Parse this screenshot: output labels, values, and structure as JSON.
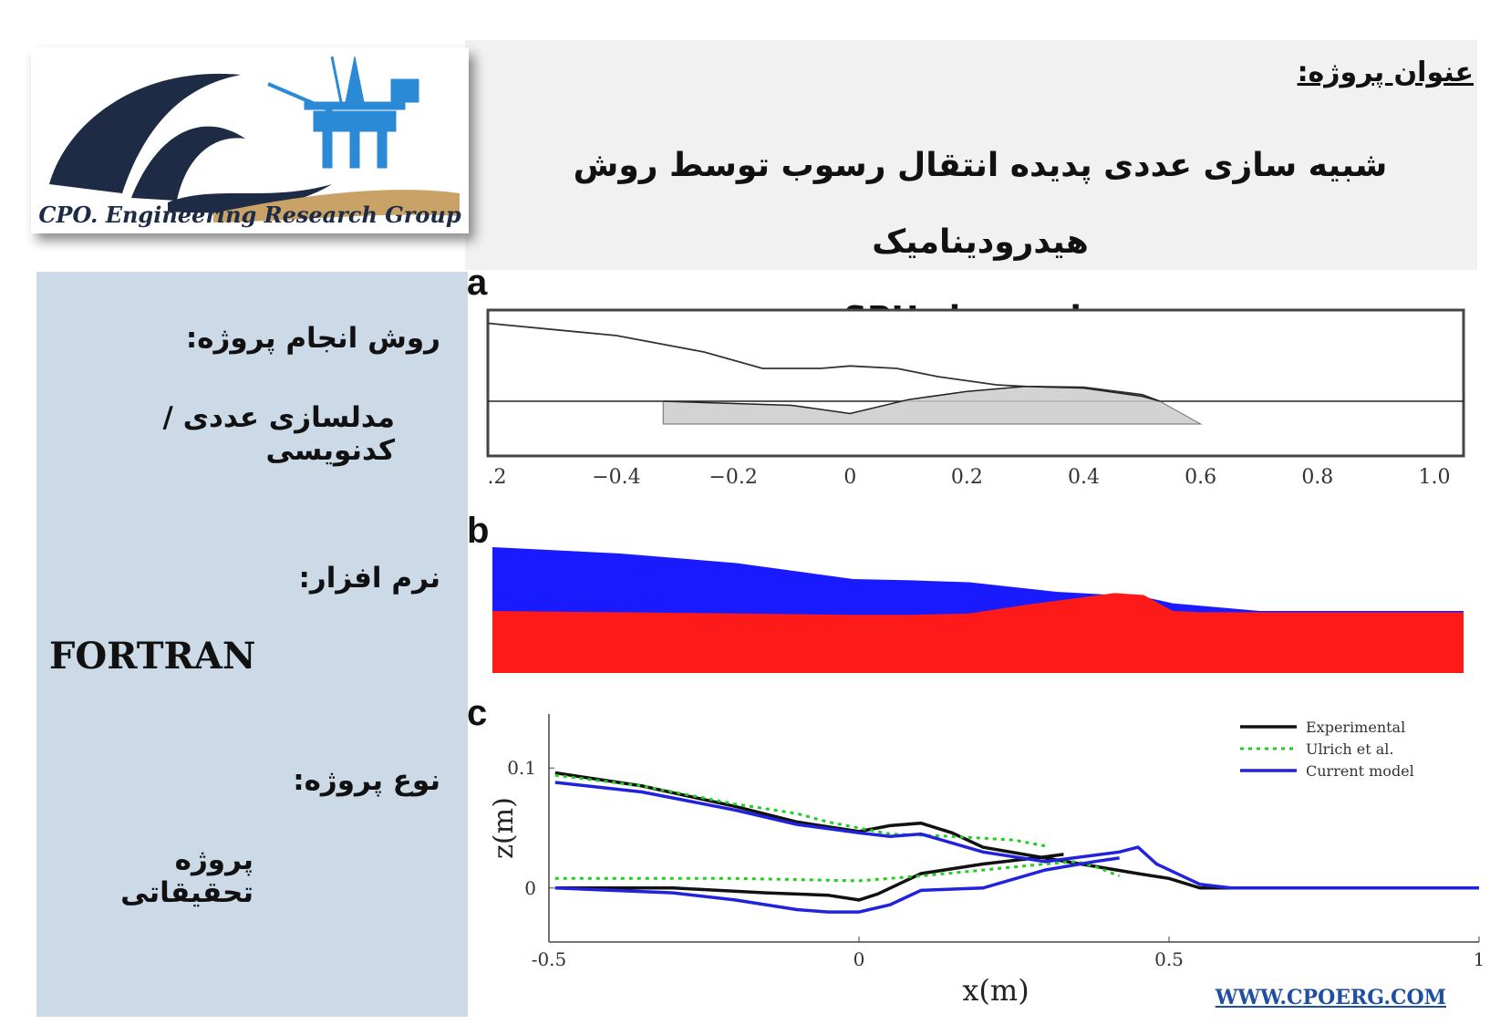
{
  "header": {
    "project_label": "عنوان پروژه:",
    "title_line1": "شبیه سازی عددی پدیده انتقال رسوب توسط روش هیدرودینامیک",
    "title_line2": "ذرات هموار SPH",
    "logo_text": "CPO. Engineering Research Group"
  },
  "side_panel": {
    "method_heading": "روش انجام پروژه:",
    "method_value": "مدلسازی عددی /کدنویسی",
    "software_heading": "نرم افزار:",
    "software_value": "FORTRAN",
    "type_heading": "نوع پروژه:",
    "type_value": "پروژه تحقیقاتی"
  },
  "panels": {
    "a": "a",
    "b": "b",
    "c": "c"
  },
  "footer": {
    "website": "WWW.CPOERG.COM"
  },
  "colors": {
    "header_band": "#f1f1f1",
    "side_panel": "#ccd9e7",
    "water": "#1a1aff",
    "sediment": "#ff1a1a",
    "experimental": "#111111",
    "ulrich": "#22cc22",
    "current_model": "#2222dd",
    "link": "#1f4fa0"
  },
  "chart_data": [
    {
      "type": "scatter",
      "panel": "a",
      "x_tick_labels": [
        ".2",
        "−0.4",
        "−0.2",
        "0",
        "0.2",
        "0.4",
        "0.6",
        "0.8",
        "1.0"
      ],
      "xlim": [
        -0.62,
        1.05
      ],
      "free_surface": {
        "x": [
          -0.62,
          -0.4,
          -0.25,
          -0.15,
          -0.05,
          0.0,
          0.08,
          0.15,
          0.25,
          0.3,
          0.4,
          0.5,
          0.53
        ],
        "z": [
          0.095,
          0.08,
          0.06,
          0.04,
          0.04,
          0.043,
          0.04,
          0.03,
          0.02,
          0.018,
          0.017,
          0.008,
          0.0
        ]
      },
      "bed_top": {
        "x": [
          -0.32,
          -0.1,
          0.0,
          0.1,
          0.2,
          0.3,
          0.4,
          0.5,
          0.53
        ],
        "z": [
          0.0,
          -0.005,
          -0.015,
          0.002,
          0.012,
          0.018,
          0.016,
          0.006,
          0.0
        ]
      }
    },
    {
      "type": "area",
      "panel": "b",
      "series": [
        {
          "name": "",
          "x": [
            -0.62,
            -0.4,
            -0.2,
            0.0,
            0.1,
            0.2,
            0.35,
            0.45,
            0.5,
            0.55,
            0.7,
            1.05
          ],
          "values": [
            0.1,
            0.09,
            0.075,
            0.05,
            0.048,
            0.045,
            0.03,
            0.025,
            0.022,
            0.012,
            0.0,
            0.0
          ]
        },
        {
          "name": "",
          "x": [
            -0.62,
            -0.4,
            -0.2,
            0.0,
            0.1,
            0.2,
            0.3,
            0.4,
            0.45,
            0.5,
            0.55,
            0.6,
            0.8,
            1.05
          ],
          "values": [
            0.0,
            -0.002,
            -0.004,
            -0.006,
            -0.006,
            -0.004,
            0.01,
            0.022,
            0.028,
            0.025,
            0.0,
            -0.002,
            -0.002,
            -0.002
          ]
        }
      ]
    },
    {
      "type": "line",
      "panel": "c",
      "xlabel": "x(m)",
      "ylabel": "z(m)",
      "xlim": [
        -0.5,
        1
      ],
      "ylim": [
        -0.045,
        0.145
      ],
      "x_ticks": [
        -0.5,
        0,
        0.5,
        1
      ],
      "x_tick_labels": [
        "-0.5",
        "0",
        "0.5",
        "1"
      ],
      "y_ticks": [
        0,
        0.1
      ],
      "y_tick_labels": [
        "0",
        "0.1"
      ],
      "legend_position": "top-right",
      "series": [
        {
          "name": "Experimental",
          "lines": [
            {
              "x": [
                -0.49,
                -0.35,
                -0.2,
                -0.1,
                0.0,
                0.05,
                0.1,
                0.15,
                0.2,
                0.3,
                0.45,
                0.5,
                0.55,
                0.6,
                0.7
              ],
              "y": [
                0.096,
                0.085,
                0.068,
                0.055,
                0.047,
                0.052,
                0.054,
                0.046,
                0.034,
                0.025,
                0.012,
                0.008,
                0.0,
                0.0,
                0.0
              ]
            },
            {
              "x": [
                -0.49,
                -0.3,
                -0.15,
                -0.05,
                0.0,
                0.03,
                0.1,
                0.2,
                0.3,
                0.33
              ],
              "y": [
                0.0,
                0.0,
                -0.004,
                -0.006,
                -0.01,
                -0.005,
                0.012,
                0.02,
                0.026,
                0.028
              ]
            }
          ]
        },
        {
          "name": "Ulrich et al.",
          "lines": [
            {
              "x": [
                -0.49,
                -0.35,
                -0.2,
                -0.1,
                -0.05,
                0.05,
                0.15,
                0.25,
                0.3
              ],
              "y": [
                0.094,
                0.085,
                0.07,
                0.062,
                0.055,
                0.045,
                0.043,
                0.04,
                0.035
              ]
            },
            {
              "x": [
                -0.49,
                -0.2,
                0.0,
                0.1,
                0.2,
                0.3,
                0.35,
                0.38,
                0.42
              ],
              "y": [
                0.008,
                0.008,
                0.006,
                0.01,
                0.015,
                0.02,
                0.022,
                0.018,
                0.01
              ]
            }
          ]
        },
        {
          "name": "Current model",
          "lines": [
            {
              "x": [
                -0.49,
                -0.35,
                -0.2,
                -0.1,
                0.0,
                0.05,
                0.1,
                0.2,
                0.3,
                0.42,
                0.45,
                0.48,
                0.55,
                0.6,
                0.7,
                1.0
              ],
              "y": [
                0.088,
                0.08,
                0.065,
                0.053,
                0.046,
                0.043,
                0.045,
                0.03,
                0.022,
                0.03,
                0.034,
                0.02,
                0.003,
                0.0,
                0.0,
                0.0
              ]
            },
            {
              "x": [
                -0.49,
                -0.3,
                -0.2,
                -0.1,
                -0.05,
                0.0,
                0.05,
                0.1,
                0.2,
                0.3,
                0.38,
                0.42
              ],
              "y": [
                0.0,
                -0.004,
                -0.01,
                -0.018,
                -0.02,
                -0.02,
                -0.014,
                -0.002,
                0.0,
                0.015,
                0.022,
                0.025
              ]
            }
          ]
        }
      ]
    }
  ]
}
